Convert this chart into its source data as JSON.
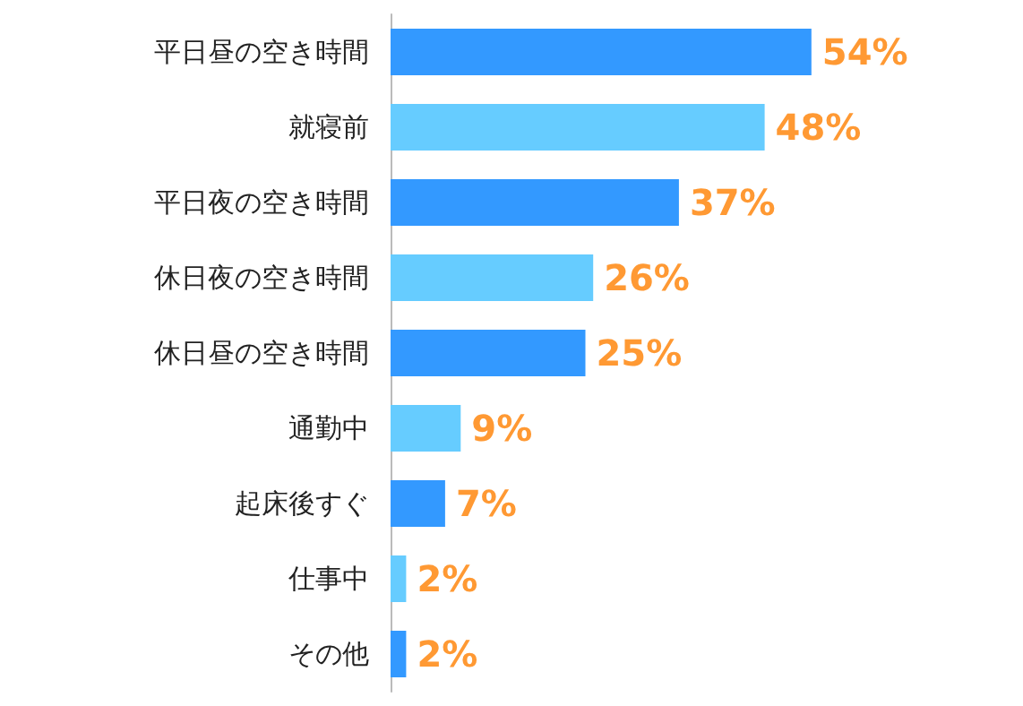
{
  "chart_data": {
    "type": "bar",
    "orientation": "horizontal",
    "categories": [
      "平日昼の空き時間",
      "就寝前",
      "平日夜の空き時間",
      "休日夜の空き時間",
      "休日昼の空き時間",
      "通勤中",
      "起床後すぐ",
      "仕事中",
      "その他"
    ],
    "values": [
      54,
      48,
      37,
      26,
      25,
      9,
      7,
      2,
      2
    ],
    "colors": [
      "#3399ff",
      "#66ccff",
      "#3399ff",
      "#66ccff",
      "#3399ff",
      "#66ccff",
      "#3399ff",
      "#66ccff",
      "#3399ff"
    ],
    "value_labels": [
      "54%",
      "48%",
      "37%",
      "26%",
      "25%",
      "9%",
      "7%",
      "2%",
      "2%"
    ],
    "tick_labels": "y"
  }
}
